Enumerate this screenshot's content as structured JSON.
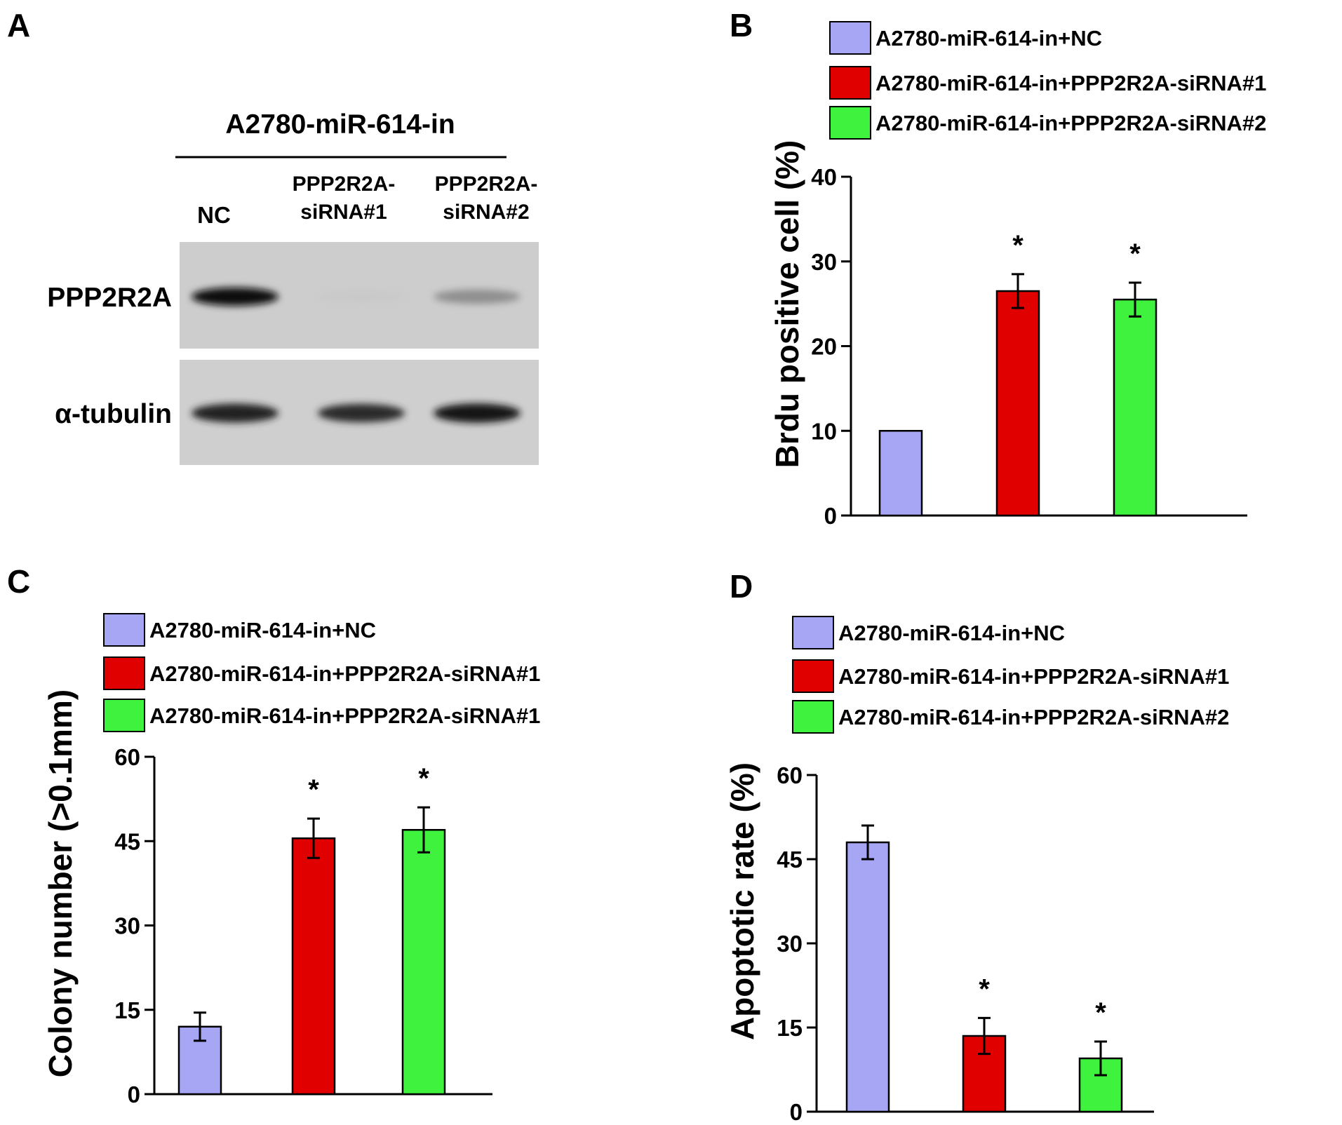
{
  "figure": {
    "panel_labels": [
      "A",
      "B",
      "C",
      "D"
    ]
  },
  "panel_a": {
    "header": "A2780-miR-614-in",
    "lanes": [
      [
        "NC"
      ],
      [
        "PPP2R2A-",
        "siRNA#1"
      ],
      [
        "PPP2R2A-",
        "siRNA#2"
      ]
    ],
    "rows": [
      "PPP2R2A",
      "α-tubulin"
    ],
    "band_intensity": {
      "PPP2R2A": [
        1.0,
        0.05,
        0.45
      ],
      "α-tubulin": [
        0.9,
        0.85,
        0.95
      ]
    }
  },
  "colors": {
    "nc": "#a6a6f5",
    "sirna1": "#e00000",
    "sirna2": "#3ef23e"
  },
  "chart_data": [
    {
      "panel": "B",
      "type": "bar",
      "legend": [
        "A2780-miR-614-in+NC",
        "A2780-miR-614-in+PPP2R2A-siRNA#1",
        "A2780-miR-614-in+PPP2R2A-siRNA#2"
      ],
      "values": [
        10,
        26.5,
        25.5
      ],
      "errors": [
        0,
        2.0,
        2.0
      ],
      "significance": [
        "",
        "*",
        "*"
      ],
      "ylabel": "Brdu positive cell (%)",
      "ylim": [
        0,
        40
      ],
      "yticks": [
        0,
        10,
        20,
        30,
        40
      ],
      "legend_position": "top"
    },
    {
      "panel": "C",
      "type": "bar",
      "legend": [
        "A2780-miR-614-in+NC",
        "A2780-miR-614-in+PPP2R2A-siRNA#1",
        "A2780-miR-614-in+PPP2R2A-siRNA#1"
      ],
      "values": [
        12,
        45.5,
        47
      ],
      "errors": [
        2.5,
        3.5,
        4.0
      ],
      "significance": [
        "",
        "*",
        "*"
      ],
      "ylabel": "Colony number (>0.1mm)",
      "ylim": [
        0,
        60
      ],
      "yticks": [
        0,
        15,
        30,
        45,
        60
      ],
      "legend_position": "top"
    },
    {
      "panel": "D",
      "type": "bar",
      "legend": [
        "A2780-miR-614-in+NC",
        "A2780-miR-614-in+PPP2R2A-siRNA#1",
        "A2780-miR-614-in+PPP2R2A-siRNA#2"
      ],
      "values": [
        48,
        13.5,
        9.5
      ],
      "errors": [
        3.0,
        3.2,
        3.0
      ],
      "significance": [
        "",
        "*",
        "*"
      ],
      "ylabel": "Apoptotic rate (%)",
      "ylim": [
        0,
        60
      ],
      "yticks": [
        0,
        15,
        30,
        45,
        60
      ],
      "legend_position": "top"
    }
  ]
}
